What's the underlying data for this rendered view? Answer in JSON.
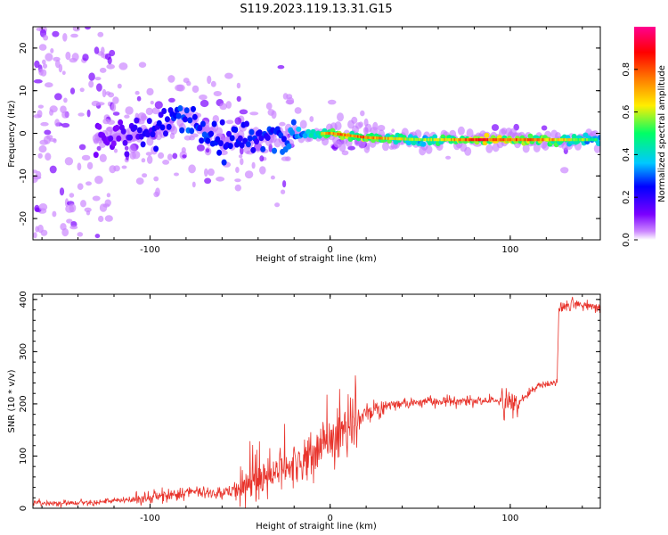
{
  "figure_title": "S119.2023.119.13.31.G15",
  "colors": {
    "snr_line": "#e8322a",
    "colormap": [
      "#ffffff",
      "#cc88ff",
      "#7a00ff",
      "#0000ff",
      "#00c8ff",
      "#00ff66",
      "#ffee00",
      "#ff7700",
      "#ff0000",
      "#ff0090"
    ]
  },
  "chart_data": [
    {
      "type": "heatmap",
      "xlabel": "Height of straight line (km)",
      "ylabel": "Frequency (Hz)",
      "xlim": [
        -165,
        150
      ],
      "ylim": [
        -25,
        25
      ],
      "xticks": [
        -100,
        0,
        100
      ],
      "yticks": [
        -20,
        -10,
        0,
        10,
        20
      ],
      "grid": false,
      "ridge": {
        "x": [
          -120,
          -100,
          -80,
          -60,
          -40,
          -20,
          0,
          20,
          50,
          80,
          110,
          148
        ],
        "y": [
          -1,
          0,
          4,
          -2,
          -1,
          0,
          0,
          -1,
          -1.5,
          -1.5,
          -1.5,
          -1.5
        ],
        "amplitude": [
          0.2,
          0.3,
          0.4,
          0.35,
          0.35,
          0.45,
          0.75,
          0.8,
          0.55,
          0.85,
          0.8,
          0.5
        ]
      },
      "colorbar": {
        "label": "Normalized spectral amplitude",
        "range": [
          0,
          1
        ],
        "ticks": [
          "0.0",
          "0.2",
          "0.4",
          "0.6",
          "0.8"
        ]
      }
    },
    {
      "type": "line",
      "xlabel": "Height of straight line (km)",
      "ylabel": "SNR (10 * v/v)",
      "xlim": [
        -165,
        150
      ],
      "ylim": [
        0,
        410
      ],
      "xticks": [
        -100,
        0,
        100
      ],
      "yticks": [
        0,
        100,
        200,
        300,
        400
      ],
      "grid": false,
      "series": [
        {
          "x": [
            -165,
            -150,
            -130,
            -115,
            -100,
            -90,
            -80,
            -70,
            -60,
            -50,
            -40,
            -30,
            -20,
            -10,
            0,
            5,
            10,
            15,
            20,
            30,
            40,
            60,
            80,
            95,
            100,
            105,
            115,
            126,
            127,
            135,
            150
          ],
          "y": [
            10,
            10,
            12,
            15,
            20,
            25,
            30,
            30,
            30,
            35,
            50,
            65,
            85,
            100,
            130,
            140,
            145,
            165,
            185,
            195,
            200,
            205,
            205,
            205,
            200,
            205,
            235,
            240,
            385,
            390,
            385
          ]
        }
      ]
    }
  ]
}
